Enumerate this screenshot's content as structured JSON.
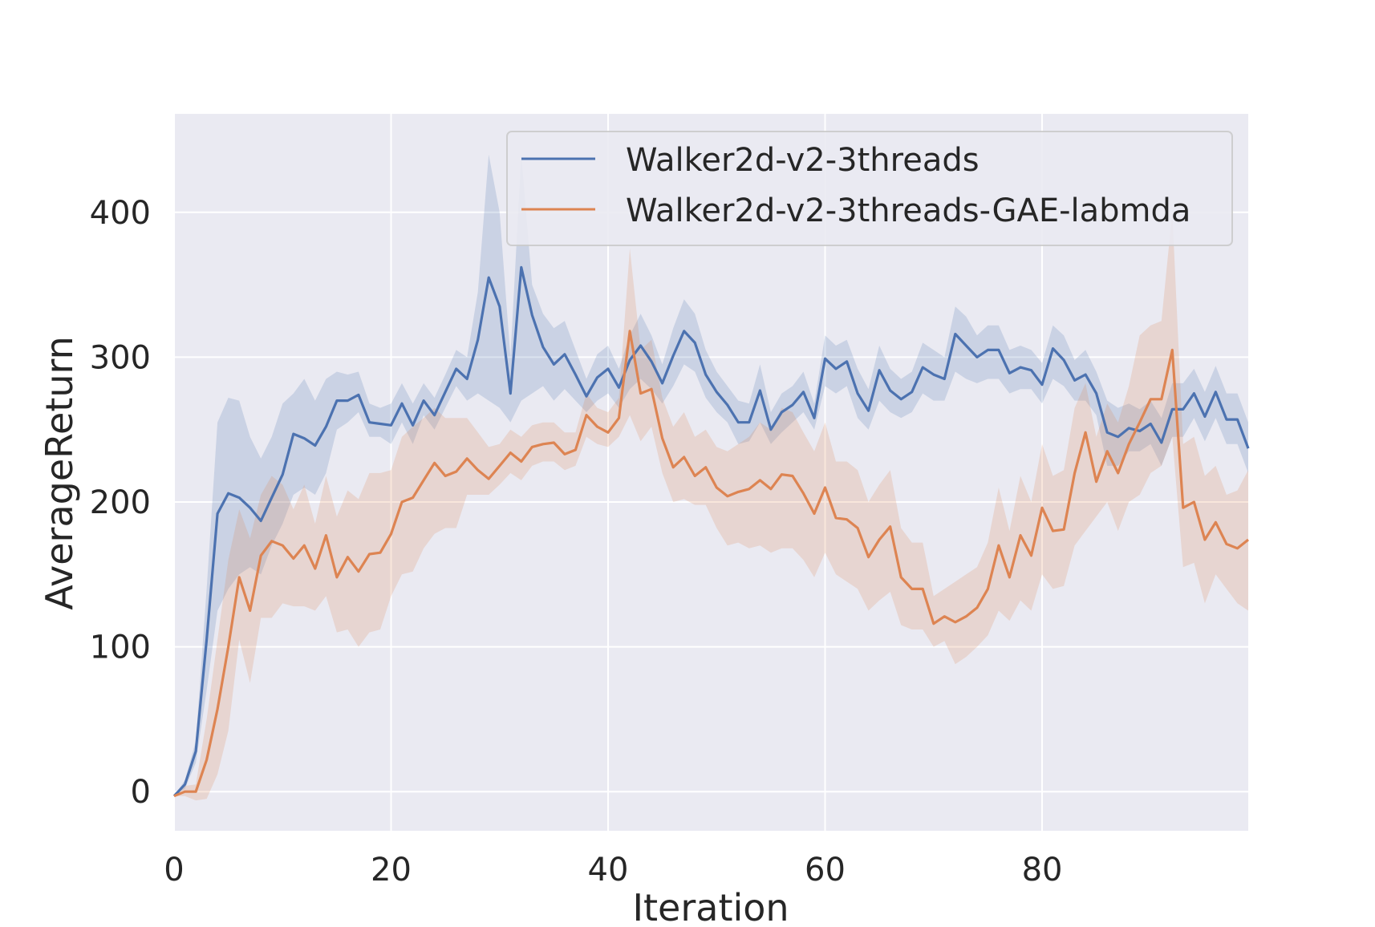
{
  "chart_data": {
    "type": "line",
    "title": "",
    "xlabel": "Iteration",
    "ylabel": "AverageReturn",
    "xlim": [
      0,
      99
    ],
    "ylim": [
      -27,
      468
    ],
    "xticks": [
      0,
      20,
      40,
      60,
      80
    ],
    "yticks": [
      0,
      100,
      200,
      300,
      400
    ],
    "grid": true,
    "legend_position": "top-right",
    "series": [
      {
        "name": "Walker2d-v2-3threads",
        "color": "#4c72b0",
        "x": [
          0,
          1,
          2,
          3,
          4,
          5,
          6,
          7,
          8,
          9,
          10,
          11,
          12,
          13,
          14,
          15,
          16,
          17,
          18,
          19,
          20,
          21,
          22,
          23,
          24,
          25,
          26,
          27,
          28,
          29,
          30,
          31,
          32,
          33,
          34,
          35,
          36,
          37,
          38,
          39,
          40,
          41,
          42,
          43,
          44,
          45,
          46,
          47,
          48,
          49,
          50,
          51,
          52,
          53,
          54,
          55,
          56,
          57,
          58,
          59,
          60,
          61,
          62,
          63,
          64,
          65,
          66,
          67,
          68,
          69,
          70,
          71,
          72,
          73,
          74,
          75,
          76,
          77,
          78,
          79,
          80,
          81,
          82,
          83,
          84,
          85,
          86,
          87,
          88,
          89,
          90,
          91,
          92,
          93,
          94,
          95,
          96,
          97,
          98,
          99
        ],
        "values": [
          -3,
          5,
          28,
          105,
          192,
          206,
          203,
          196,
          187,
          203,
          219,
          247,
          244,
          239,
          252,
          270,
          270,
          274,
          255,
          254,
          253,
          268,
          253,
          270,
          260,
          276,
          292,
          285,
          312,
          355,
          335,
          275,
          362,
          329,
          307,
          295,
          302,
          288,
          273,
          286,
          292,
          279,
          298,
          308,
          297,
          282,
          301,
          318,
          310,
          288,
          276,
          267,
          255,
          255,
          277,
          250,
          262,
          267,
          276,
          258,
          299,
          292,
          297,
          275,
          263,
          291,
          277,
          271,
          276,
          293,
          288,
          285,
          316,
          308,
          300,
          305,
          305,
          289,
          293,
          291,
          281,
          306,
          298,
          284,
          288,
          275,
          248,
          245,
          251,
          249,
          254,
          241,
          264,
          264,
          275,
          259,
          276,
          257,
          257,
          237
        ],
        "lower": [
          -3,
          2,
          20,
          70,
          125,
          140,
          150,
          155,
          150,
          170,
          185,
          205,
          210,
          205,
          220,
          250,
          255,
          262,
          245,
          245,
          240,
          255,
          240,
          260,
          250,
          265,
          280,
          270,
          275,
          270,
          265,
          255,
          270,
          275,
          280,
          270,
          278,
          270,
          262,
          270,
          275,
          265,
          278,
          285,
          278,
          268,
          280,
          295,
          290,
          272,
          262,
          255,
          240,
          242,
          255,
          240,
          248,
          255,
          262,
          250,
          280,
          275,
          280,
          258,
          250,
          270,
          262,
          258,
          262,
          275,
          270,
          270,
          290,
          285,
          282,
          285,
          285,
          275,
          278,
          278,
          268,
          285,
          280,
          270,
          270,
          260,
          225,
          225,
          235,
          235,
          240,
          225,
          245,
          245,
          258,
          242,
          258,
          240,
          240,
          220
        ],
        "upper": [
          -3,
          8,
          35,
          140,
          255,
          272,
          270,
          245,
          230,
          245,
          268,
          275,
          285,
          270,
          285,
          290,
          288,
          290,
          268,
          265,
          268,
          282,
          268,
          282,
          272,
          288,
          305,
          300,
          345,
          440,
          400,
          300,
          440,
          350,
          330,
          320,
          325,
          305,
          285,
          302,
          308,
          292,
          315,
          330,
          315,
          295,
          320,
          340,
          330,
          305,
          290,
          280,
          270,
          268,
          295,
          262,
          275,
          280,
          290,
          268,
          315,
          308,
          312,
          292,
          278,
          308,
          292,
          285,
          290,
          310,
          305,
          300,
          335,
          328,
          315,
          322,
          322,
          305,
          308,
          305,
          296,
          322,
          315,
          298,
          305,
          290,
          270,
          265,
          268,
          264,
          270,
          258,
          282,
          282,
          292,
          276,
          294,
          275,
          275,
          255
        ]
      },
      {
        "name": "Walker2d-v2-3threads-GAE-labmda",
        "color": "#dd8452",
        "x": [
          0,
          1,
          2,
          3,
          4,
          5,
          6,
          7,
          8,
          9,
          10,
          11,
          12,
          13,
          14,
          15,
          16,
          17,
          18,
          19,
          20,
          21,
          22,
          23,
          24,
          25,
          26,
          27,
          28,
          29,
          30,
          31,
          32,
          33,
          34,
          35,
          36,
          37,
          38,
          39,
          40,
          41,
          42,
          43,
          44,
          45,
          46,
          47,
          48,
          49,
          50,
          51,
          52,
          53,
          54,
          55,
          56,
          57,
          58,
          59,
          60,
          61,
          62,
          63,
          64,
          65,
          66,
          67,
          68,
          69,
          70,
          71,
          72,
          73,
          74,
          75,
          76,
          77,
          78,
          79,
          80,
          81,
          82,
          83,
          84,
          85,
          86,
          87,
          88,
          89,
          90,
          91,
          92,
          93,
          94,
          95,
          96,
          97,
          98,
          99
        ],
        "values": [
          -3,
          0,
          0,
          22,
          57,
          100,
          148,
          125,
          163,
          173,
          170,
          161,
          170,
          154,
          177,
          148,
          162,
          152,
          164,
          165,
          178,
          200,
          203,
          215,
          227,
          218,
          221,
          230,
          222,
          216,
          225,
          234,
          228,
          238,
          240,
          241,
          233,
          236,
          260,
          252,
          248,
          258,
          318,
          275,
          278,
          244,
          224,
          231,
          218,
          224,
          210,
          204,
          207,
          209,
          215,
          209,
          219,
          218,
          206,
          192,
          210,
          189,
          188,
          182,
          162,
          174,
          183,
          148,
          140,
          140,
          116,
          121,
          117,
          121,
          127,
          140,
          170,
          148,
          177,
          163,
          196,
          180,
          181,
          220,
          248,
          214,
          235,
          220,
          240,
          255,
          271,
          271,
          305,
          196,
          200,
          174,
          186,
          171,
          168,
          174
        ],
        "lower": [
          -3,
          -3,
          -6,
          -5,
          12,
          42,
          105,
          75,
          120,
          120,
          130,
          128,
          128,
          125,
          135,
          110,
          112,
          100,
          110,
          112,
          135,
          150,
          152,
          168,
          178,
          182,
          182,
          205,
          205,
          205,
          212,
          220,
          215,
          225,
          228,
          228,
          222,
          225,
          245,
          240,
          238,
          245,
          260,
          242,
          252,
          220,
          200,
          202,
          198,
          198,
          182,
          170,
          172,
          168,
          170,
          165,
          168,
          168,
          160,
          148,
          165,
          150,
          145,
          140,
          125,
          132,
          138,
          115,
          112,
          112,
          100,
          104,
          88,
          93,
          100,
          108,
          125,
          118,
          132,
          125,
          150,
          140,
          142,
          170,
          180,
          190,
          200,
          180,
          200,
          205,
          220,
          225,
          245,
          155,
          158,
          130,
          150,
          140,
          130,
          125
        ],
        "upper": [
          -3,
          4,
          5,
          50,
          105,
          160,
          195,
          175,
          205,
          218,
          212,
          195,
          212,
          185,
          218,
          190,
          208,
          202,
          220,
          220,
          222,
          245,
          252,
          258,
          265,
          258,
          258,
          258,
          248,
          238,
          240,
          250,
          245,
          253,
          255,
          255,
          248,
          248,
          275,
          265,
          262,
          272,
          375,
          305,
          312,
          272,
          252,
          262,
          245,
          250,
          238,
          235,
          240,
          245,
          255,
          250,
          265,
          262,
          248,
          235,
          255,
          228,
          228,
          222,
          200,
          212,
          222,
          182,
          172,
          172,
          135,
          140,
          145,
          150,
          155,
          172,
          210,
          180,
          218,
          200,
          240,
          218,
          222,
          265,
          282,
          245,
          268,
          255,
          280,
          315,
          322,
          325,
          400,
          240,
          245,
          218,
          225,
          205,
          208,
          222
        ]
      }
    ]
  }
}
